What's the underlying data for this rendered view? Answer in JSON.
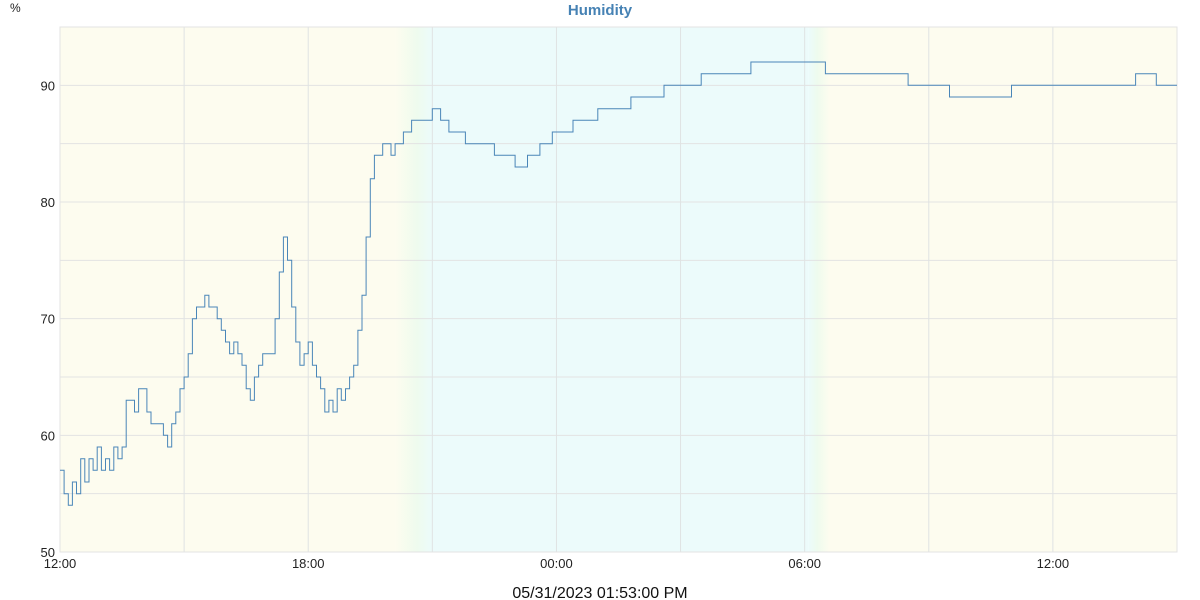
{
  "chart_data": {
    "type": "line",
    "title": "Humidity",
    "y_unit": "%",
    "ylim": [
      50,
      95
    ],
    "y_ticks": [
      50,
      60,
      70,
      80,
      90
    ],
    "x_range_hours": [
      0,
      27
    ],
    "x_ticks": [
      {
        "h": 0,
        "label": "12:00"
      },
      {
        "h": 6,
        "label": "18:00"
      },
      {
        "h": 12,
        "label": "00:00"
      },
      {
        "h": 18,
        "label": "06:00"
      },
      {
        "h": 24,
        "label": "12:00"
      }
    ],
    "footer": "05/31/2023 01:53:00 PM",
    "grid": true,
    "colors": {
      "line": "#4a86b8",
      "title": "#4682b4",
      "day_bg": "#fdfcef",
      "night_bg": "#ecfbfb",
      "transition": "#eefbee"
    },
    "background_bands": [
      {
        "kind": "day",
        "from": 0,
        "to": 8.1
      },
      {
        "kind": "dawn-to-night",
        "from": 8.1,
        "to": 9.0
      },
      {
        "kind": "night",
        "from": 9.0,
        "to": 18.1
      },
      {
        "kind": "night-to-day",
        "from": 18.1,
        "to": 18.6
      },
      {
        "kind": "day",
        "from": 18.6,
        "to": 27
      }
    ],
    "series": [
      {
        "points": [
          [
            0.0,
            57
          ],
          [
            0.1,
            55
          ],
          [
            0.2,
            54
          ],
          [
            0.3,
            56
          ],
          [
            0.4,
            55
          ],
          [
            0.5,
            58
          ],
          [
            0.6,
            56
          ],
          [
            0.7,
            58
          ],
          [
            0.8,
            57
          ],
          [
            0.9,
            59
          ],
          [
            1.0,
            57
          ],
          [
            1.1,
            58
          ],
          [
            1.2,
            57
          ],
          [
            1.3,
            59
          ],
          [
            1.4,
            58
          ],
          [
            1.5,
            59
          ],
          [
            1.6,
            63
          ],
          [
            1.7,
            63
          ],
          [
            1.8,
            62
          ],
          [
            1.9,
            64
          ],
          [
            2.0,
            64
          ],
          [
            2.1,
            62
          ],
          [
            2.2,
            61
          ],
          [
            2.3,
            61
          ],
          [
            2.4,
            61
          ],
          [
            2.5,
            60
          ],
          [
            2.6,
            59
          ],
          [
            2.7,
            61
          ],
          [
            2.8,
            62
          ],
          [
            2.9,
            64
          ],
          [
            3.0,
            65
          ],
          [
            3.1,
            67
          ],
          [
            3.2,
            70
          ],
          [
            3.3,
            71
          ],
          [
            3.4,
            71
          ],
          [
            3.5,
            72
          ],
          [
            3.6,
            71
          ],
          [
            3.7,
            71
          ],
          [
            3.8,
            70
          ],
          [
            3.9,
            69
          ],
          [
            4.0,
            68
          ],
          [
            4.1,
            67
          ],
          [
            4.2,
            68
          ],
          [
            4.3,
            67
          ],
          [
            4.4,
            66
          ],
          [
            4.5,
            64
          ],
          [
            4.6,
            63
          ],
          [
            4.7,
            65
          ],
          [
            4.8,
            66
          ],
          [
            4.9,
            67
          ],
          [
            5.0,
            67
          ],
          [
            5.1,
            67
          ],
          [
            5.2,
            70
          ],
          [
            5.3,
            74
          ],
          [
            5.4,
            77
          ],
          [
            5.5,
            75
          ],
          [
            5.6,
            71
          ],
          [
            5.7,
            68
          ],
          [
            5.8,
            66
          ],
          [
            5.9,
            67
          ],
          [
            6.0,
            68
          ],
          [
            6.1,
            66
          ],
          [
            6.2,
            65
          ],
          [
            6.3,
            64
          ],
          [
            6.4,
            62
          ],
          [
            6.5,
            63
          ],
          [
            6.6,
            62
          ],
          [
            6.7,
            64
          ],
          [
            6.8,
            63
          ],
          [
            6.9,
            64
          ],
          [
            7.0,
            65
          ],
          [
            7.1,
            66
          ],
          [
            7.2,
            69
          ],
          [
            7.3,
            72
          ],
          [
            7.4,
            77
          ],
          [
            7.5,
            82
          ],
          [
            7.6,
            84
          ],
          [
            7.7,
            84
          ],
          [
            7.8,
            85
          ],
          [
            7.9,
            85
          ],
          [
            8.0,
            84
          ],
          [
            8.1,
            85
          ],
          [
            8.3,
            86
          ],
          [
            8.5,
            87
          ],
          [
            8.8,
            87
          ],
          [
            9.0,
            88
          ],
          [
            9.2,
            87
          ],
          [
            9.4,
            86
          ],
          [
            9.6,
            86
          ],
          [
            9.8,
            85
          ],
          [
            10.0,
            85
          ],
          [
            10.3,
            85
          ],
          [
            10.5,
            84
          ],
          [
            10.8,
            84
          ],
          [
            11.0,
            83
          ],
          [
            11.3,
            84
          ],
          [
            11.6,
            85
          ],
          [
            11.9,
            86
          ],
          [
            12.1,
            86
          ],
          [
            12.4,
            87
          ],
          [
            12.7,
            87
          ],
          [
            13.0,
            88
          ],
          [
            13.4,
            88
          ],
          [
            13.8,
            89
          ],
          [
            14.2,
            89
          ],
          [
            14.6,
            90
          ],
          [
            15.0,
            90
          ],
          [
            15.5,
            91
          ],
          [
            16.0,
            91
          ],
          [
            16.5,
            91
          ],
          [
            16.7,
            92
          ],
          [
            17.0,
            92
          ],
          [
            17.5,
            92
          ],
          [
            18.0,
            92
          ],
          [
            18.5,
            91
          ],
          [
            19.0,
            91
          ],
          [
            19.5,
            91
          ],
          [
            20.0,
            91
          ],
          [
            20.5,
            90
          ],
          [
            21.0,
            90
          ],
          [
            21.5,
            89
          ],
          [
            22.0,
            89
          ],
          [
            22.5,
            89
          ],
          [
            23.0,
            90
          ],
          [
            23.5,
            90
          ],
          [
            24.0,
            90
          ],
          [
            24.5,
            90
          ],
          [
            25.0,
            90
          ],
          [
            25.5,
            90
          ],
          [
            26.0,
            91
          ],
          [
            26.3,
            91
          ],
          [
            26.5,
            90
          ],
          [
            27.0,
            90
          ]
        ]
      }
    ]
  }
}
